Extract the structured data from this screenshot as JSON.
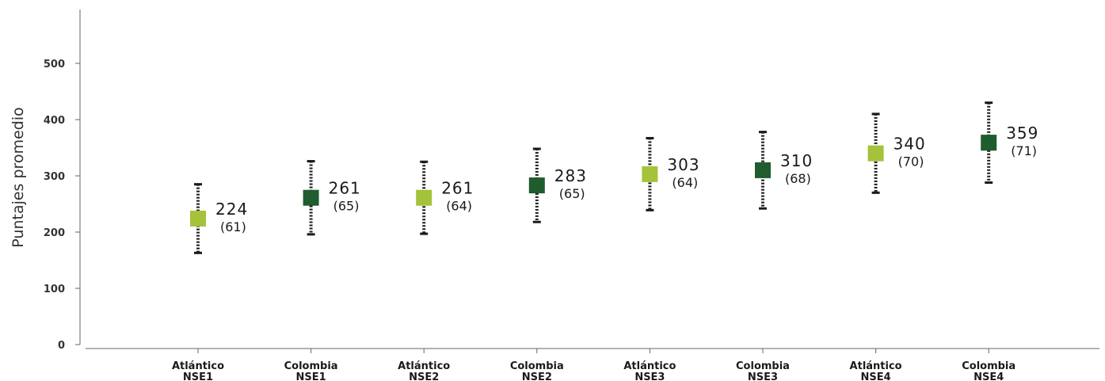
{
  "chart_data": {
    "type": "scatter",
    "ylabel": "Puntajes promedio",
    "ylim": [
      0,
      600
    ],
    "yticks": [
      0,
      100,
      200,
      300,
      400,
      500
    ],
    "grid": false,
    "categories": [
      [
        "Atlántico",
        "NSE1"
      ],
      [
        "Colombia",
        "NSE1"
      ],
      [
        "Atlántico",
        "NSE2"
      ],
      [
        "Colombia",
        "NSE2"
      ],
      [
        "Atlántico",
        "NSE3"
      ],
      [
        "Colombia",
        "NSE3"
      ],
      [
        "Atlántico",
        "NSE4"
      ],
      [
        "Colombia",
        "NSE4"
      ]
    ],
    "values": [
      224,
      261,
      261,
      283,
      303,
      310,
      340,
      359
    ],
    "sd": [
      61,
      65,
      64,
      65,
      64,
      68,
      70,
      71
    ],
    "value_labels": [
      "224",
      "261",
      "261",
      "283",
      "303",
      "310",
      "340",
      "359"
    ],
    "sd_labels": [
      "(61)",
      "(65)",
      "(64)",
      "(65)",
      "(64)",
      "(68)",
      "(70)",
      "(71)"
    ],
    "colors": {
      "Atlántico": "#a4c23a",
      "Colombia": "#1f5c2e",
      "error_bar": "#1a1a1a",
      "axis": "#666666"
    }
  }
}
